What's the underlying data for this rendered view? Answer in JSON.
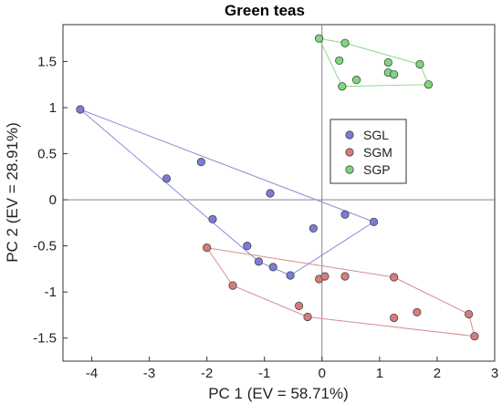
{
  "chart_data": {
    "type": "scatter",
    "title": "Green teas",
    "xlabel": "PC 1 (EV = 58.71%)",
    "ylabel": "PC 2 (EV = 28.91%)",
    "xlim": [
      -4.5,
      3
    ],
    "ylim": [
      -1.75,
      1.9
    ],
    "xticks": [
      -4,
      -3,
      -2,
      -1,
      0,
      1,
      2,
      3
    ],
    "yticks": [
      -1.5,
      -1,
      -0.5,
      0,
      0.5,
      1,
      1.5
    ],
    "xtick_labels": [
      "-4",
      "-3",
      "-2",
      "-1",
      "0",
      "1",
      "2",
      "3"
    ],
    "ytick_labels": [
      "-1.5",
      "-1",
      "-0.5",
      "0",
      "0.5",
      "1",
      "1.5"
    ],
    "reference_lines": {
      "x": 0,
      "y": 0
    },
    "legend_position": "center-right",
    "series": [
      {
        "name": "SGL",
        "color": "#7b7bd9",
        "hull_color": "#8c8cd8",
        "points": [
          [
            -4.2,
            0.98
          ],
          [
            -2.7,
            0.23
          ],
          [
            -2.1,
            0.41
          ],
          [
            -1.9,
            -0.21
          ],
          [
            -1.3,
            -0.5
          ],
          [
            -1.1,
            -0.67
          ],
          [
            -0.9,
            0.07
          ],
          [
            -0.85,
            -0.73
          ],
          [
            -0.55,
            -0.82
          ],
          [
            -0.15,
            -0.31
          ],
          [
            0.4,
            -0.16
          ],
          [
            0.9,
            -0.24
          ]
        ],
        "hull": [
          [
            -4.2,
            0.98
          ],
          [
            0.9,
            -0.24
          ],
          [
            -0.55,
            -0.82
          ],
          [
            -1.1,
            -0.67
          ]
        ]
      },
      {
        "name": "SGM",
        "color": "#d97b7b",
        "hull_color": "#d98c8c",
        "points": [
          [
            -2.0,
            -0.52
          ],
          [
            -1.55,
            -0.93
          ],
          [
            -0.4,
            -1.15
          ],
          [
            -0.25,
            -1.27
          ],
          [
            -0.05,
            -0.86
          ],
          [
            0.05,
            -0.83
          ],
          [
            0.4,
            -0.83
          ],
          [
            1.25,
            -0.84
          ],
          [
            1.25,
            -1.28
          ],
          [
            1.65,
            -1.22
          ],
          [
            2.55,
            -1.24
          ],
          [
            2.65,
            -1.48
          ]
        ],
        "hull": [
          [
            -2.0,
            -0.52
          ],
          [
            1.25,
            -0.84
          ],
          [
            2.55,
            -1.24
          ],
          [
            2.65,
            -1.48
          ],
          [
            -0.25,
            -1.27
          ],
          [
            -1.55,
            -0.93
          ]
        ]
      },
      {
        "name": "SGP",
        "color": "#7bd97b",
        "hull_color": "#8cd88c",
        "points": [
          [
            -0.05,
            1.75
          ],
          [
            0.3,
            1.51
          ],
          [
            0.35,
            1.23
          ],
          [
            0.4,
            1.7
          ],
          [
            0.6,
            1.3
          ],
          [
            1.15,
            1.49
          ],
          [
            1.15,
            1.38
          ],
          [
            1.25,
            1.36
          ],
          [
            1.7,
            1.47
          ],
          [
            1.85,
            1.25
          ]
        ],
        "hull": [
          [
            -0.05,
            1.75
          ],
          [
            0.4,
            1.7
          ],
          [
            1.7,
            1.47
          ],
          [
            1.85,
            1.25
          ],
          [
            0.35,
            1.23
          ]
        ]
      }
    ]
  }
}
